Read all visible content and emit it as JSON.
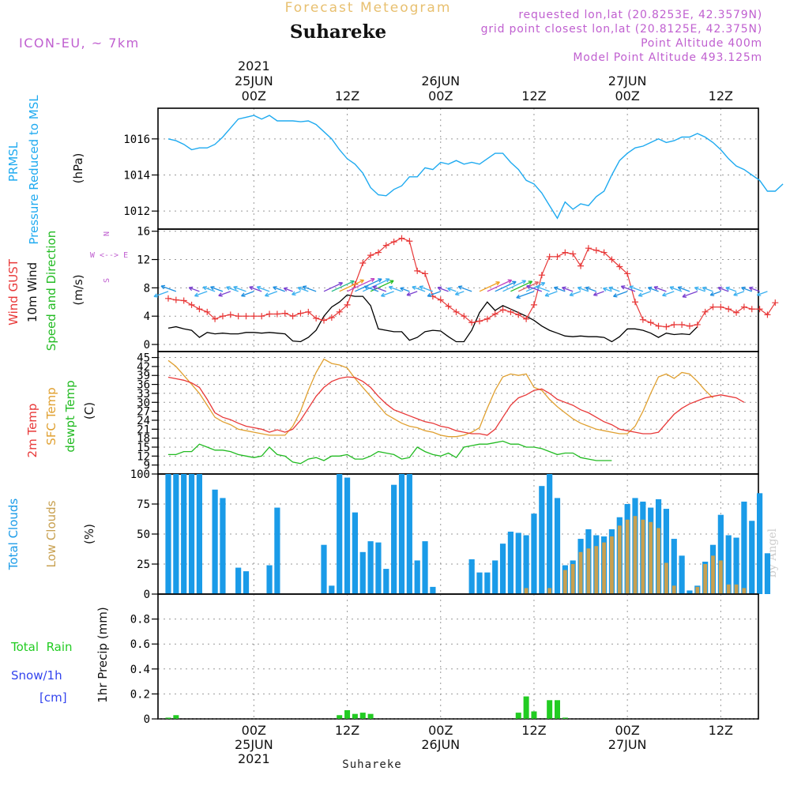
{
  "header": {
    "product": "Forecast Meteogram",
    "location": "Suhareke",
    "model": "ICON-EU, ~ 7km",
    "requested": "requested lon,lat (20.8253E, 42.3579N)",
    "closest": "grid point closest lon,lat (20.8125E, 42.375N)",
    "point_alt": "Point Altitude 400m",
    "model_alt": "Model Point Altitude 493.125m",
    "watermark": "by Angel",
    "footer_location": "Suhareke"
  },
  "colors": {
    "pressure": "#1eaaf0",
    "gust": "#e83838",
    "wind": "#000000",
    "wind_label": "#22bb22",
    "temp2m": "#e83838",
    "sfc": "#e0a030",
    "dewpt": "#22bb22",
    "total_clouds": "#1a9be8",
    "low_clouds": "#c8a050",
    "rain": "#22cc22",
    "snow": "#3344ee",
    "header_gold": "#e8c070",
    "header_purple": "#c060d0",
    "grid": "#999999"
  },
  "time_axis": {
    "top_labels": [
      {
        "h": 11,
        "lines": [
          "2021",
          "25JUN",
          "00Z"
        ]
      },
      {
        "h": 23,
        "lines": [
          "12Z"
        ]
      },
      {
        "h": 35,
        "lines": [
          "26JUN",
          "00Z"
        ]
      },
      {
        "h": 47,
        "lines": [
          "12Z"
        ]
      },
      {
        "h": 59,
        "lines": [
          "27JUN",
          "00Z"
        ]
      },
      {
        "h": 71,
        "lines": [
          "12Z"
        ]
      }
    ],
    "bottom_labels": [
      {
        "h": 11,
        "lines": [
          "00Z",
          "25JUN",
          "2021"
        ]
      },
      {
        "h": 23,
        "lines": [
          "12Z"
        ]
      },
      {
        "h": 35,
        "lines": [
          "00Z",
          "26JUN"
        ]
      },
      {
        "h": 47,
        "lines": [
          "12Z"
        ]
      },
      {
        "h": 59,
        "lines": [
          "00Z",
          "27JUN"
        ]
      },
      {
        "h": 71,
        "lines": [
          "12Z"
        ]
      }
    ]
  },
  "panels": {
    "pressure": {
      "labels": [
        "PRMSL",
        "Pressure Reduced to MSL"
      ],
      "unit": "(hPa)"
    },
    "wind": {
      "labels": [
        "Wind GUST",
        "10m Wind",
        "Speed and Direction"
      ],
      "unit": "(m/s)",
      "compass": [
        "N",
        "W <--> E",
        "S"
      ]
    },
    "temp": {
      "labels": [
        "2m Temp",
        "SFC Temp",
        "dewpt Temp"
      ],
      "unit": "(C)"
    },
    "clouds": {
      "labels": [
        "Total Clouds",
        "Low Clouds"
      ],
      "unit": "(%)"
    },
    "precip": {
      "labels": [
        "Total  Rain",
        "Snow/1h",
        "[cm]"
      ],
      "axis": "1hr Precip (mm)"
    }
  },
  "chart_data": [
    {
      "type": "line",
      "name": "pressure",
      "ylabel": "(hPa)",
      "ylim": [
        1011,
        1017.7
      ],
      "yticks": [
        1012,
        1014,
        1016
      ],
      "x_hours": {
        "start": 0,
        "step": 1
      },
      "series": [
        {
          "name": "PRMSL",
          "values": [
            1016.0,
            1015.9,
            1015.7,
            1015.4,
            1015.5,
            1015.5,
            1015.7,
            1016.1,
            1016.6,
            1017.1,
            1017.2,
            1017.3,
            1017.1,
            1017.3,
            1017.0,
            1017.0,
            1017.0,
            1016.95,
            1017.0,
            1016.8,
            1016.4,
            1016.0,
            1015.4,
            1014.9,
            1014.6,
            1014.1,
            1013.3,
            1012.9,
            1012.85,
            1013.2,
            1013.4,
            1013.9,
            1013.9,
            1014.4,
            1014.3,
            1014.7,
            1014.6,
            1014.8,
            1014.6,
            1014.7,
            1014.6,
            1014.9,
            1015.2,
            1015.2,
            1014.7,
            1014.3,
            1013.7,
            1013.5,
            1013.0,
            1012.3,
            1011.6,
            1012.5,
            1012.1,
            1012.4,
            1012.3,
            1012.8,
            1013.1,
            1014.0,
            1014.8,
            1015.2,
            1015.5,
            1015.6,
            1015.8,
            1016.0,
            1015.8,
            1015.9,
            1016.1,
            1016.1,
            1016.3,
            1016.1,
            1015.8,
            1015.4,
            1014.9,
            1014.5,
            1014.3,
            1014.0,
            1013.7,
            1013.1,
            1013.1,
            1013.5
          ]
        }
      ]
    },
    {
      "type": "line",
      "name": "wind",
      "ylabel": "(m/s)",
      "ylim": [
        -1,
        16.3
      ],
      "yticks": [
        0,
        4,
        8,
        12,
        16
      ],
      "x_hours": {
        "start": 0,
        "step": 1
      },
      "series": [
        {
          "name": "Wind GUST",
          "values": [
            6.5,
            6.3,
            6.2,
            5.6,
            5.0,
            4.6,
            3.6,
            4.0,
            4.2,
            4.0,
            4.0,
            4.0,
            4.0,
            4.3,
            4.3,
            4.4,
            4.0,
            4.4,
            4.6,
            3.7,
            3.4,
            3.8,
            4.6,
            5.6,
            8.5,
            11.5,
            12.6,
            13.0,
            14.0,
            14.5,
            15.0,
            14.6,
            10.4,
            10.0,
            6.8,
            6.3,
            5.4,
            4.6,
            4.0,
            3.1,
            3.3,
            3.6,
            4.3,
            4.9,
            4.6,
            4.2,
            3.6,
            5.6,
            9.8,
            12.4,
            12.4,
            13.0,
            12.8,
            11.1,
            13.6,
            13.3,
            13.0,
            12.0,
            11.0,
            10.0,
            6.0,
            3.5,
            3.1,
            2.6,
            2.5,
            2.8,
            2.8,
            2.6,
            2.8,
            4.6,
            5.3,
            5.3,
            5.0,
            4.5,
            5.3,
            5.0,
            5.0,
            4.2,
            5.9
          ]
        },
        {
          "name": "10m Wind",
          "values": [
            2.3,
            2.5,
            2.2,
            2.0,
            1.0,
            1.7,
            1.5,
            1.6,
            1.5,
            1.5,
            1.7,
            1.7,
            1.6,
            1.7,
            1.6,
            1.5,
            0.5,
            0.4,
            1.0,
            2.0,
            4.0,
            5.3,
            6.0,
            7.0,
            6.8,
            6.8,
            5.5,
            2.2,
            2.0,
            1.8,
            1.8,
            0.6,
            1.0,
            1.8,
            2.0,
            1.9,
            1.1,
            0.4,
            0.4,
            2.0,
            4.5,
            6.0,
            4.8,
            5.5,
            5.0,
            4.5,
            4.0,
            3.4,
            2.6,
            2.0,
            1.6,
            1.2,
            1.1,
            1.2,
            1.1,
            1.1,
            1.0,
            0.4,
            1.1,
            2.2,
            2.2,
            2.0,
            1.6,
            1.0,
            1.6,
            1.4,
            1.5,
            1.4,
            2.5
          ]
        }
      ],
      "arrow_hours": [
        0,
        1,
        4,
        5,
        6,
        7,
        8,
        9,
        10,
        11,
        12,
        13,
        14,
        15,
        16,
        17,
        18,
        19,
        20,
        21,
        22,
        23,
        24,
        25,
        26,
        27,
        28,
        29,
        30,
        31,
        32,
        33,
        34,
        35,
        36,
        37,
        38,
        39,
        40,
        41,
        42,
        43,
        44,
        45,
        46,
        47,
        48,
        49,
        50,
        51,
        52,
        53,
        54,
        55,
        56,
        57,
        58,
        59,
        60,
        61,
        62,
        63,
        64,
        65,
        66,
        67,
        68,
        69,
        70,
        71,
        72,
        73,
        74,
        75,
        76,
        77
      ]
    },
    {
      "type": "line",
      "name": "temp",
      "ylabel": "(C)",
      "ylim": [
        6,
        47
      ],
      "yticks": [
        9,
        12,
        15,
        18,
        21,
        24,
        27,
        30,
        33,
        36,
        39,
        42,
        45
      ],
      "x_hours": {
        "start": 0,
        "step": 1
      },
      "series": [
        {
          "name": "2m Temp",
          "values": [
            38.4,
            37.9,
            37.4,
            36.5,
            35.0,
            31.0,
            26.5,
            25.0,
            24.2,
            23.0,
            22.0,
            21.5,
            21.0,
            20.0,
            20.8,
            20.0,
            21.0,
            24.0,
            28.0,
            32.0,
            35.0,
            37.0,
            38.0,
            38.5,
            38.3,
            37.0,
            35.0,
            32.0,
            29.5,
            27.5,
            26.5,
            25.5,
            24.5,
            23.5,
            23.0,
            22.0,
            21.5,
            20.5,
            20.0,
            19.5,
            19.5,
            19.0,
            21.0,
            25.0,
            29.0,
            31.5,
            32.5,
            34.0,
            34.5,
            33.0,
            31.0,
            30.0,
            29.0,
            27.5,
            26.5,
            25.0,
            23.5,
            22.5,
            21.0,
            20.5,
            20.0,
            19.5,
            19.5,
            20.0,
            23.0,
            26.0,
            28.0,
            29.5,
            30.5,
            31.5,
            32.0,
            32.5,
            32.0,
            31.5,
            30.0
          ]
        },
        {
          "name": "SFC Temp",
          "values": [
            44.0,
            42.0,
            39.0,
            36.0,
            33.0,
            29.0,
            25.0,
            23.5,
            22.5,
            21.0,
            20.5,
            20.0,
            19.5,
            19.0,
            19.0,
            19.0,
            22.0,
            27.0,
            34.0,
            40.0,
            44.5,
            43.0,
            42.5,
            41.5,
            38.0,
            35.0,
            32.0,
            29.0,
            26.0,
            24.5,
            23.0,
            22.0,
            21.5,
            20.5,
            20.0,
            19.0,
            18.5,
            18.5,
            19.0,
            20.0,
            21.5,
            28.0,
            34.0,
            38.5,
            39.5,
            39.0,
            39.5,
            35.0,
            34.0,
            31.0,
            28.5,
            26.5,
            24.5,
            23.0,
            22.0,
            21.0,
            20.5,
            20.0,
            19.5,
            19.5,
            22.0,
            27.0,
            33.0,
            38.5,
            39.5,
            38.0,
            40.0,
            39.5,
            37.0,
            34.0,
            31.5
          ]
        },
        {
          "name": "dewpt Temp",
          "values": [
            12.5,
            12.5,
            13.5,
            13.5,
            16.0,
            15.0,
            14.0,
            14.0,
            13.5,
            12.5,
            12.0,
            11.5,
            12.0,
            15.0,
            12.5,
            12.0,
            10.0,
            9.5,
            11.0,
            11.5,
            10.5,
            12.0,
            12.0,
            12.5,
            11.0,
            11.0,
            12.0,
            13.5,
            13.0,
            12.5,
            11.0,
            11.5,
            15.0,
            13.5,
            12.5,
            12.0,
            13.0,
            11.5,
            15.0,
            15.5,
            16.0,
            16.0,
            16.5,
            17.0,
            16.0,
            16.0,
            15.0,
            15.0,
            14.5,
            13.5,
            12.5,
            13.0,
            13.0,
            11.5,
            11.0,
            10.5,
            10.5,
            10.5
          ]
        }
      ]
    },
    {
      "type": "bar",
      "name": "clouds",
      "ylabel": "(%)",
      "ylim": [
        0,
        100
      ],
      "yticks": [
        0,
        25,
        50,
        75,
        100
      ],
      "x_hours": {
        "start": 0,
        "step": 1
      },
      "series": [
        {
          "name": "Total Clouds",
          "values": [
            100,
            100,
            100,
            100,
            100,
            0,
            87,
            80,
            0,
            22,
            19,
            0,
            0,
            24,
            72,
            0,
            0,
            0,
            0,
            0,
            41,
            7,
            100,
            97,
            68,
            35,
            44,
            43,
            21,
            91,
            100,
            100,
            28,
            44,
            6,
            0,
            0,
            0,
            0,
            29,
            18,
            18,
            28,
            42,
            52,
            51,
            49,
            67,
            90,
            100,
            80,
            24,
            28,
            46,
            54,
            49,
            48,
            54,
            64,
            75,
            80,
            77,
            72,
            79,
            71,
            46,
            32,
            3,
            7,
            27,
            41,
            66,
            49,
            47,
            77,
            61,
            84,
            34
          ]
        },
        {
          "name": "Low Clouds",
          "values": [
            0,
            0,
            0,
            0,
            0,
            0,
            0,
            0,
            0,
            0,
            0,
            0,
            0,
            0,
            0,
            0,
            0,
            0,
            0,
            0,
            0,
            0,
            0,
            0,
            0,
            0,
            0,
            0,
            0,
            0,
            0,
            0,
            0,
            0,
            0,
            0,
            0,
            0,
            0,
            0,
            0,
            0,
            0,
            0,
            0,
            0,
            5,
            0,
            0,
            5,
            0,
            20,
            25,
            35,
            38,
            40,
            43,
            48,
            57,
            62,
            65,
            62,
            60,
            55,
            26,
            7,
            0,
            0,
            6,
            25,
            32,
            28,
            8,
            8,
            5,
            0,
            0,
            0
          ]
        }
      ]
    },
    {
      "type": "bar",
      "name": "precip",
      "ylabel": "1hr Precip (mm)",
      "ylim": [
        0,
        1.0
      ],
      "yticks": [
        0,
        0.2,
        0.4,
        0.6,
        0.8
      ],
      "x_hours": {
        "start": 0,
        "step": 1
      },
      "series": [
        {
          "name": "Total Rain",
          "values": [
            0.01,
            0.03,
            0,
            0,
            0,
            0,
            0,
            0,
            0,
            0,
            0,
            0,
            0,
            0,
            0,
            0,
            0,
            0,
            0,
            0,
            0,
            0,
            0.03,
            0.07,
            0.04,
            0.05,
            0.04,
            0,
            0,
            0,
            0,
            0,
            0,
            0,
            0,
            0,
            0,
            0,
            0,
            0,
            0,
            0,
            0,
            0,
            0,
            0.05,
            0.18,
            0.06,
            0,
            0.15,
            0.15,
            0.01,
            0,
            0,
            0,
            0,
            0,
            0,
            0,
            0,
            0,
            0,
            0,
            0,
            0,
            0,
            0,
            0,
            0,
            0,
            0,
            0,
            0,
            0,
            0,
            0,
            0,
            0
          ]
        },
        {
          "name": "Snow/1h",
          "values": [
            0,
            0,
            0,
            0,
            0,
            0,
            0,
            0,
            0,
            0,
            0,
            0,
            0,
            0,
            0,
            0,
            0,
            0,
            0,
            0,
            0,
            0,
            0,
            0,
            0,
            0,
            0,
            0,
            0,
            0,
            0,
            0,
            0,
            0,
            0,
            0,
            0,
            0,
            0,
            0,
            0,
            0,
            0,
            0,
            0,
            0,
            0,
            0,
            0,
            0,
            0,
            0,
            0,
            0,
            0,
            0,
            0,
            0,
            0,
            0,
            0,
            0,
            0,
            0,
            0,
            0,
            0,
            0,
            0,
            0,
            0,
            0,
            0,
            0,
            0,
            0,
            0,
            0
          ]
        }
      ]
    }
  ]
}
